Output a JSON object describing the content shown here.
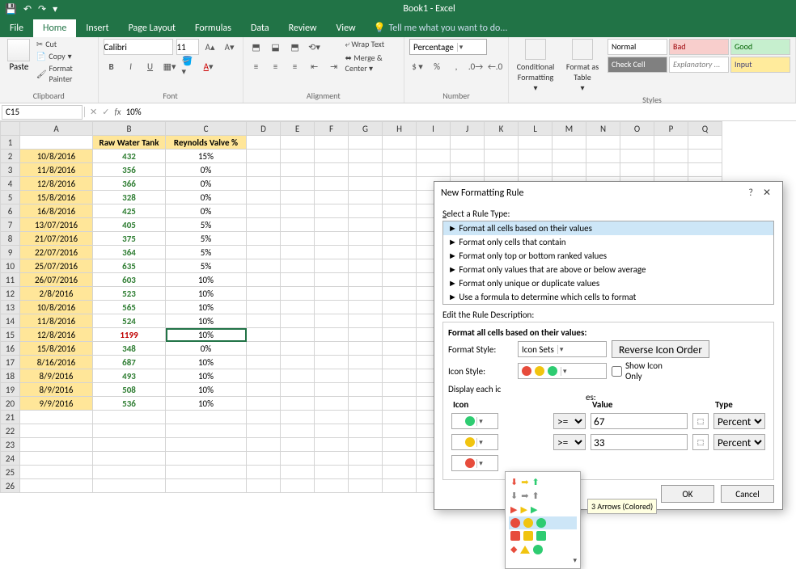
{
  "app": {
    "title": "Book1 - Excel"
  },
  "qat": {
    "save": "💾",
    "undo": "↶",
    "redo": "↷"
  },
  "tabs": {
    "items": [
      "File",
      "Home",
      "Insert",
      "Page Layout",
      "Formulas",
      "Data",
      "Review",
      "View"
    ],
    "active": "Home",
    "tellme": "Tell me what you want to do..."
  },
  "ribbon": {
    "clipboard": {
      "label": "Clipboard",
      "paste": "Paste",
      "cut": "Cut",
      "copy": "Copy",
      "painter": "Format Painter"
    },
    "font": {
      "label": "Font",
      "name": "Calibri",
      "size": "11"
    },
    "alignment": {
      "label": "Alignment",
      "wrap": "Wrap Text",
      "merge": "Merge & Center"
    },
    "number": {
      "label": "Number",
      "format": "Percentage"
    },
    "cond": "Conditional Formatting",
    "fmtTable": "Format as Table",
    "styles": {
      "label": "Styles",
      "cells": [
        {
          "t": "Normal",
          "bg": "#ffffff",
          "fg": "#000"
        },
        {
          "t": "Bad",
          "bg": "#f8cecc",
          "fg": "#9c0006"
        },
        {
          "t": "Good",
          "bg": "#c6efce",
          "fg": "#006100"
        },
        {
          "t": "Check Cell",
          "bg": "#808080",
          "fg": "#fff"
        },
        {
          "t": "Explanatory ...",
          "bg": "#fff",
          "fg": "#7f7f7f"
        },
        {
          "t": "Input",
          "bg": "#ffeb9c",
          "fg": "#3f3f76"
        }
      ]
    }
  },
  "namebox": "C15",
  "formula": "10%",
  "columns": [
    "A",
    "B",
    "C",
    "D",
    "E",
    "F",
    "G",
    "H",
    "I",
    "J",
    "K",
    "L",
    "M",
    "N",
    "O",
    "P",
    "Q"
  ],
  "headers": {
    "b": "Raw Water Tank",
    "c": "Reynolds Valve %"
  },
  "rows": [
    {
      "a": "10/8/2016",
      "b": "432",
      "c": "15%"
    },
    {
      "a": "11/8/2016",
      "b": "356",
      "c": "0%"
    },
    {
      "a": "12/8/2016",
      "b": "366",
      "c": "0%"
    },
    {
      "a": "15/8/2016",
      "b": "328",
      "c": "0%"
    },
    {
      "a": "16/8/2016",
      "b": "425",
      "c": "0%"
    },
    {
      "a": "13/07/2016",
      "b": "405",
      "c": "5%"
    },
    {
      "a": "21/07/2016",
      "b": "375",
      "c": "5%"
    },
    {
      "a": "22/07/2016",
      "b": "364",
      "c": "5%"
    },
    {
      "a": "25/07/2016",
      "b": "635",
      "c": "5%"
    },
    {
      "a": "26/07/2016",
      "b": "603",
      "c": "10%"
    },
    {
      "a": "2/8/2016",
      "b": "523",
      "c": "10%"
    },
    {
      "a": "10/8/2016",
      "b": "565",
      "c": "10%"
    },
    {
      "a": "11/8/2016",
      "b": "524",
      "c": "10%"
    },
    {
      "a": "12/8/2016",
      "b": "1199",
      "c": "10%",
      "red": true,
      "sel": true
    },
    {
      "a": "15/8/2016",
      "b": "348",
      "c": "0%"
    },
    {
      "a": "8/16/2016",
      "b": "687",
      "c": "10%"
    },
    {
      "a": "8/9/2016",
      "b": "493",
      "c": "10%"
    },
    {
      "a": "8/9/2016",
      "b": "508",
      "c": "10%"
    },
    {
      "a": "9/9/2016",
      "b": "536",
      "c": "10%"
    }
  ],
  "dialog": {
    "title": "New Formatting Rule",
    "selectLabel": "Select a Rule Type:",
    "rules": [
      "Format all cells based on their values",
      "Format only cells that contain",
      "Format only top or bottom ranked values",
      "Format only values that are above or below average",
      "Format only unique or duplicate values",
      "Use a formula to determine which cells to format"
    ],
    "editLabel": "Edit the Rule Description:",
    "subtitle": "Format all cells based on their values:",
    "formatStyleLabel": "Format Style:",
    "formatStyle": "Icon Sets",
    "reverse": "Reverse Icon Order",
    "iconStyleLabel": "Icon Style:",
    "showIconOnly": "Show Icon Only",
    "displayEach": "Display each ic",
    "es": "es:",
    "iconCol": "Icon",
    "valueCol": "Value",
    "typeCol": "Type",
    "v1": "67",
    "v2": "33",
    "type": "Percent",
    "op": ">=",
    "tooltip": "3 Arrows (Colored)",
    "ok": "OK",
    "cancel": "Cancel",
    "colors": {
      "red": "#e74c3c",
      "yellow": "#f1c40f",
      "green": "#2ecc71",
      "gray": "#888",
      "black": "#333",
      "pink": "#e28bb0",
      "orange": "#e67e22"
    }
  }
}
